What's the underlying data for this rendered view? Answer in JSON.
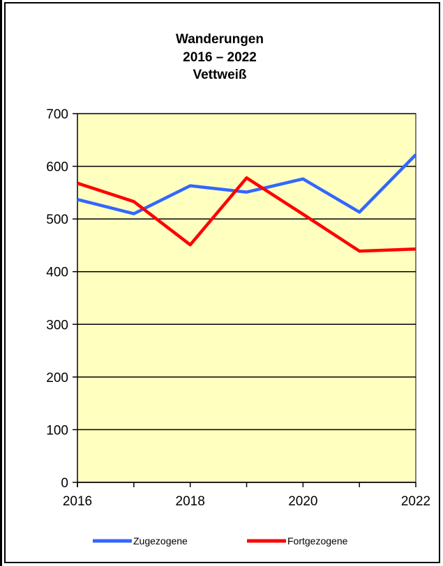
{
  "chart_data": {
    "type": "line",
    "title": [
      "Wanderungen",
      "2016 – 2022",
      "Vettweiß"
    ],
    "xlabel": "",
    "ylabel": "",
    "x": [
      2016,
      2017,
      2018,
      2019,
      2020,
      2021,
      2022
    ],
    "x_tick_labels": [
      "2016",
      "2018",
      "2020",
      "2022"
    ],
    "x_tick_values": [
      2016,
      2018,
      2020,
      2022
    ],
    "ylim": [
      0,
      700
    ],
    "y_ticks": [
      0,
      100,
      200,
      300,
      400,
      500,
      600,
      700
    ],
    "grid": "horizontal",
    "plot_background": "#ffffc0",
    "legend_position": "bottom",
    "series": [
      {
        "name": "Zugezogene",
        "color": "#3366ff",
        "values": [
          537,
          510,
          563,
          551,
          576,
          513,
          622
        ]
      },
      {
        "name": "Fortgezogene",
        "color": "#ff0000",
        "values": [
          568,
          533,
          451,
          578,
          509,
          439,
          443
        ]
      }
    ]
  }
}
